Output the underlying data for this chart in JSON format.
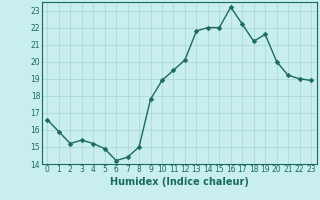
{
  "x": [
    0,
    1,
    2,
    3,
    4,
    5,
    6,
    7,
    8,
    9,
    10,
    11,
    12,
    13,
    14,
    15,
    16,
    17,
    18,
    19,
    20,
    21,
    22,
    23
  ],
  "y": [
    16.6,
    15.9,
    15.2,
    15.4,
    15.2,
    14.9,
    14.2,
    14.4,
    15.0,
    17.8,
    18.9,
    19.5,
    20.1,
    21.8,
    22.0,
    22.0,
    23.2,
    22.2,
    21.2,
    21.6,
    20.0,
    19.2,
    19.0,
    18.9
  ],
  "line_color": "#1a6b5c",
  "marker": "D",
  "marker_size": 2.5,
  "bg_color": "#c8eeee",
  "grid_color": "#b0d8d8",
  "xlabel": "Humidex (Indice chaleur)",
  "xlim": [
    -0.5,
    23.5
  ],
  "ylim": [
    14,
    23.5
  ],
  "yticks": [
    14,
    15,
    16,
    17,
    18,
    19,
    20,
    21,
    22,
    23
  ],
  "xticks": [
    0,
    1,
    2,
    3,
    4,
    5,
    6,
    7,
    8,
    9,
    10,
    11,
    12,
    13,
    14,
    15,
    16,
    17,
    18,
    19,
    20,
    21,
    22,
    23
  ],
  "tick_fontsize": 5.5,
  "label_fontsize": 7.0,
  "line_width": 1.0
}
